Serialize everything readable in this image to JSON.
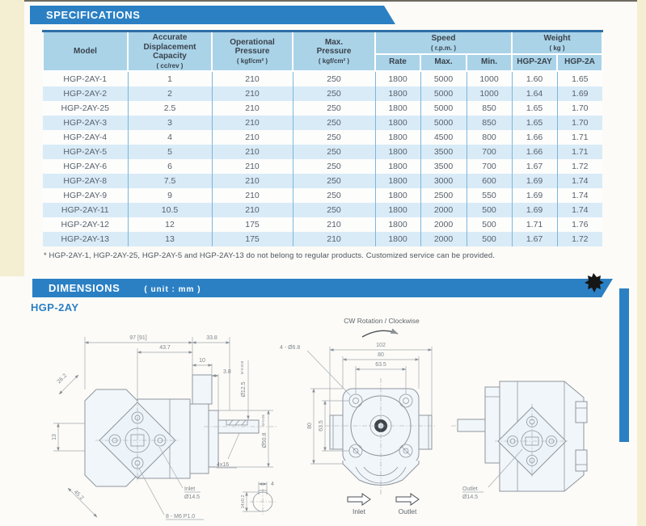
{
  "spec": {
    "title": "SPECIFICATIONS",
    "table": {
      "col_headers": {
        "model": "Model",
        "capacity": "Accurate\nDisplacement\nCapacity",
        "capacity_unit": "( cc/rev )",
        "op_pressure": "Operational\nPressure",
        "op_pressure_unit": "( kgf/cm² )",
        "max_pressure": "Max.\nPressure",
        "max_pressure_unit": "( kgf/cm² )",
        "speed": "Speed",
        "speed_unit": "( r.p.m. )",
        "weight": "Weight",
        "weight_unit": "( kg )",
        "rate": "Rate",
        "max": "Max.",
        "min": "Min.",
        "weight_2ay": "HGP-2AY",
        "weight_2a": "HGP-2A"
      },
      "rows": [
        [
          "HGP-2AY-1",
          "1",
          "210",
          "250",
          "1800",
          "5000",
          "1000",
          "1.60",
          "1.65"
        ],
        [
          "HGP-2AY-2",
          "2",
          "210",
          "250",
          "1800",
          "5000",
          "1000",
          "1.64",
          "1.69"
        ],
        [
          "HGP-2AY-25",
          "2.5",
          "210",
          "250",
          "1800",
          "5000",
          "850",
          "1.65",
          "1.70"
        ],
        [
          "HGP-2AY-3",
          "3",
          "210",
          "250",
          "1800",
          "5000",
          "850",
          "1.65",
          "1.70"
        ],
        [
          "HGP-2AY-4",
          "4",
          "210",
          "250",
          "1800",
          "4500",
          "800",
          "1.66",
          "1.71"
        ],
        [
          "HGP-2AY-5",
          "5",
          "210",
          "250",
          "1800",
          "3500",
          "700",
          "1.66",
          "1.71"
        ],
        [
          "HGP-2AY-6",
          "6",
          "210",
          "250",
          "1800",
          "3500",
          "700",
          "1.67",
          "1.72"
        ],
        [
          "HGP-2AY-8",
          "7.5",
          "210",
          "250",
          "1800",
          "3000",
          "600",
          "1.69",
          "1.74"
        ],
        [
          "HGP-2AY-9",
          "9",
          "210",
          "250",
          "1800",
          "2500",
          "550",
          "1.69",
          "1.74"
        ],
        [
          "HGP-2AY-11",
          "10.5",
          "210",
          "250",
          "1800",
          "2000",
          "500",
          "1.69",
          "1.74"
        ],
        [
          "HGP-2AY-12",
          "12",
          "175",
          "210",
          "1800",
          "2000",
          "500",
          "1.71",
          "1.76"
        ],
        [
          "HGP-2AY-13",
          "13",
          "175",
          "210",
          "1800",
          "2000",
          "500",
          "1.67",
          "1.72"
        ]
      ]
    },
    "footnote": "* HGP-2AY-1, HGP-2AY-25, HGP-2AY-5 and HGP-2AY-13 do not belong to regular products. Customized service can be provided."
  },
  "dimensions": {
    "title": "DIMENSIONS",
    "unit_note": "( unit : mm )",
    "model": "HGP-2AY",
    "rotation_note": "CW Rotation / Clockwise",
    "side_view_left": {
      "overall_length": "97 [91]",
      "front_length": "33.8",
      "mid_length": "43.7",
      "boss_length": "10",
      "step": "3.8",
      "chamfer": "26.2",
      "offset_13": "13",
      "shaft_dia": "Ø12.5",
      "shaft_dia_tol": "0/-0.018",
      "pilot_dia": "Ø50.8",
      "pilot_dia_tol": "0/-0.05",
      "key_size": "4x16",
      "inlet_label": "Inlet",
      "inlet_dia": "Ø14.5",
      "mount_holes": "8 - M6 P1.0",
      "diag_dim": "45.2",
      "key_width": "4",
      "key_height": "14±0.2"
    },
    "front_view": {
      "mount_holes": "4 - Ø6.8",
      "width_overall": "102",
      "width_flange": "80",
      "width_holes": "63.5",
      "height_flange": "80",
      "height_holes": "63.5",
      "inlet": "Inlet",
      "outlet": "Outlet"
    },
    "side_view_right": {
      "outlet_label": "Outlet",
      "outlet_dia": "Ø14.5"
    }
  },
  "colors": {
    "accent_blue": "#2b80c4",
    "table_header_fill": "#aad3e8",
    "row_alt_fill": "#d9ebf7"
  }
}
